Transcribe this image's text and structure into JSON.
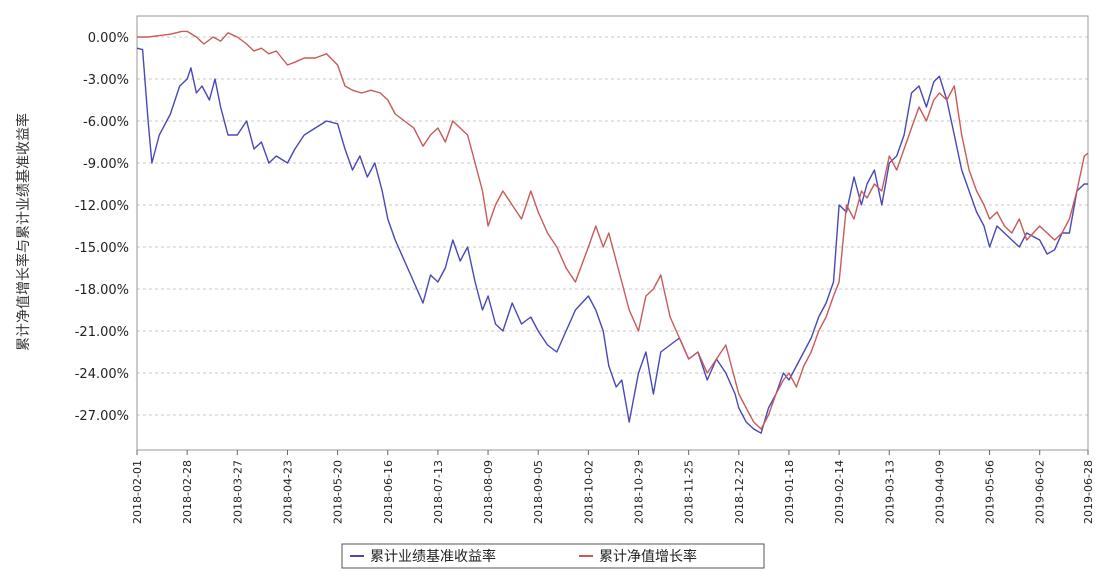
{
  "chart_data": {
    "type": "line",
    "title": "",
    "xlabel": "",
    "ylabel": "累计净值增长率与累计业绩基准收益率",
    "ylim": [
      -29.5,
      1.5
    ],
    "y_ticks": [
      "0.00%",
      "-3.00%",
      "-6.00%",
      "-9.00%",
      "-12.00%",
      "-15.00%",
      "-18.00%",
      "-21.00%",
      "-24.00%",
      "-27.00%"
    ],
    "y_tick_values": [
      0,
      -3,
      -6,
      -9,
      -12,
      -15,
      -18,
      -21,
      -24,
      -27
    ],
    "x_ticks": [
      "2018-02-01",
      "2018-02-28",
      "2018-03-27",
      "2018-04-23",
      "2018-05-20",
      "2018-06-16",
      "2018-07-13",
      "2018-08-09",
      "2018-09-05",
      "2018-10-02",
      "2018-10-29",
      "2018-11-25",
      "2018-12-22",
      "2019-01-18",
      "2019-02-14",
      "2019-03-13",
      "2019-04-09",
      "2019-05-06",
      "2019-06-02",
      "2019-06-28"
    ],
    "grid": true,
    "legend_position": "bottom",
    "series": [
      {
        "name": "累计业绩基准收益率",
        "color": "#4848b8",
        "x": [
          "2018-02-01",
          "2018-02-04",
          "2018-02-07",
          "2018-02-09",
          "2018-02-13",
          "2018-02-19",
          "2018-02-24",
          "2018-02-28",
          "2018-03-02",
          "2018-03-05",
          "2018-03-08",
          "2018-03-12",
          "2018-03-15",
          "2018-03-18",
          "2018-03-22",
          "2018-03-27",
          "2018-04-01",
          "2018-04-05",
          "2018-04-09",
          "2018-04-13",
          "2018-04-17",
          "2018-04-23",
          "2018-04-27",
          "2018-05-02",
          "2018-05-08",
          "2018-05-14",
          "2018-05-20",
          "2018-05-24",
          "2018-05-28",
          "2018-06-01",
          "2018-06-05",
          "2018-06-09",
          "2018-06-13",
          "2018-06-16",
          "2018-06-20",
          "2018-06-25",
          "2018-06-30",
          "2018-07-05",
          "2018-07-09",
          "2018-07-13",
          "2018-07-17",
          "2018-07-21",
          "2018-07-25",
          "2018-07-29",
          "2018-08-02",
          "2018-08-06",
          "2018-08-09",
          "2018-08-13",
          "2018-08-17",
          "2018-08-22",
          "2018-08-27",
          "2018-09-01",
          "2018-09-05",
          "2018-09-10",
          "2018-09-15",
          "2018-09-20",
          "2018-09-25",
          "2018-10-02",
          "2018-10-06",
          "2018-10-10",
          "2018-10-13",
          "2018-10-17",
          "2018-10-20",
          "2018-10-24",
          "2018-10-29",
          "2018-11-02",
          "2018-11-06",
          "2018-11-10",
          "2018-11-15",
          "2018-11-20",
          "2018-11-25",
          "2018-11-30",
          "2018-12-05",
          "2018-12-10",
          "2018-12-15",
          "2018-12-20",
          "2018-12-22",
          "2018-12-26",
          "2018-12-30",
          "2019-01-03",
          "2019-01-07",
          "2019-01-11",
          "2019-01-15",
          "2019-01-18",
          "2019-01-22",
          "2019-01-26",
          "2019-01-30",
          "2019-02-03",
          "2019-02-07",
          "2019-02-11",
          "2019-02-14",
          "2019-02-18",
          "2019-02-22",
          "2019-02-26",
          "2019-03-01",
          "2019-03-05",
          "2019-03-09",
          "2019-03-13",
          "2019-03-17",
          "2019-03-21",
          "2019-03-25",
          "2019-03-29",
          "2019-04-02",
          "2019-04-06",
          "2019-04-09",
          "2019-04-13",
          "2019-04-17",
          "2019-04-21",
          "2019-04-25",
          "2019-04-29",
          "2019-05-03",
          "2019-05-06",
          "2019-05-10",
          "2019-05-14",
          "2019-05-18",
          "2019-05-22",
          "2019-05-26",
          "2019-06-02",
          "2019-06-06",
          "2019-06-10",
          "2019-06-14",
          "2019-06-18",
          "2019-06-22",
          "2019-06-26",
          "2019-06-28"
        ],
        "y": [
          -0.8,
          -0.9,
          -6.0,
          -9.0,
          -7.0,
          -5.5,
          -3.5,
          -3.0,
          -2.2,
          -4.0,
          -3.5,
          -4.5,
          -3.0,
          -5.0,
          -7.0,
          -7.0,
          -6.0,
          -8.0,
          -7.5,
          -9.0,
          -8.5,
          -9.0,
          -8.0,
          -7.0,
          -6.5,
          -6.0,
          -6.2,
          -8.0,
          -9.5,
          -8.5,
          -10.0,
          -9.0,
          -11.0,
          -13.0,
          -14.5,
          -16.0,
          -17.5,
          -19.0,
          -17.0,
          -17.5,
          -16.5,
          -14.5,
          -16.0,
          -15.0,
          -17.5,
          -19.5,
          -18.5,
          -20.5,
          -21.0,
          -19.0,
          -20.5,
          -20.0,
          -21.0,
          -22.0,
          -22.5,
          -21.0,
          -19.5,
          -18.5,
          -19.5,
          -21.0,
          -23.5,
          -25.0,
          -24.5,
          -27.5,
          -24.0,
          -22.5,
          -25.5,
          -22.5,
          -22.0,
          -21.5,
          -23.0,
          -22.5,
          -24.5,
          -23.0,
          -24.0,
          -25.5,
          -26.5,
          -27.5,
          -28.0,
          -28.3,
          -26.5,
          -25.5,
          -24.0,
          -24.5,
          -23.5,
          -22.5,
          -21.5,
          -20.0,
          -19.0,
          -17.5,
          -12.0,
          -12.5,
          -10.0,
          -12.0,
          -10.5,
          -9.5,
          -12.0,
          -9.0,
          -8.5,
          -7.0,
          -4.0,
          -3.5,
          -5.0,
          -3.2,
          -2.8,
          -4.5,
          -7.0,
          -9.5,
          -11.0,
          -12.5,
          -13.5,
          -15.0,
          -13.5,
          -14.0,
          -14.5,
          -15.0,
          -14.0,
          -14.5,
          -15.5,
          -15.2,
          -14.0,
          -14.0,
          -11.0,
          -10.5,
          -10.5
        ]
      },
      {
        "name": "累计净值增长率",
        "color": "#c85a5a",
        "x": [
          "2018-02-01",
          "2018-02-07",
          "2018-02-13",
          "2018-02-19",
          "2018-02-25",
          "2018-02-28",
          "2018-03-05",
          "2018-03-09",
          "2018-03-14",
          "2018-03-18",
          "2018-03-22",
          "2018-03-27",
          "2018-04-01",
          "2018-04-05",
          "2018-04-09",
          "2018-04-13",
          "2018-04-17",
          "2018-04-23",
          "2018-04-27",
          "2018-05-02",
          "2018-05-08",
          "2018-05-14",
          "2018-05-20",
          "2018-05-24",
          "2018-05-28",
          "2018-06-02",
          "2018-06-07",
          "2018-06-12",
          "2018-06-16",
          "2018-06-20",
          "2018-06-25",
          "2018-06-30",
          "2018-07-05",
          "2018-07-09",
          "2018-07-13",
          "2018-07-17",
          "2018-07-21",
          "2018-07-25",
          "2018-07-29",
          "2018-08-02",
          "2018-08-06",
          "2018-08-09",
          "2018-08-13",
          "2018-08-17",
          "2018-08-22",
          "2018-08-27",
          "2018-09-01",
          "2018-09-05",
          "2018-09-10",
          "2018-09-15",
          "2018-09-20",
          "2018-09-25",
          "2018-10-02",
          "2018-10-06",
          "2018-10-10",
          "2018-10-13",
          "2018-10-17",
          "2018-10-20",
          "2018-10-24",
          "2018-10-29",
          "2018-11-02",
          "2018-11-06",
          "2018-11-10",
          "2018-11-15",
          "2018-11-20",
          "2018-11-25",
          "2018-11-30",
          "2018-12-05",
          "2018-12-10",
          "2018-12-15",
          "2018-12-20",
          "2018-12-22",
          "2018-12-26",
          "2018-12-30",
          "2019-01-03",
          "2019-01-07",
          "2019-01-11",
          "2019-01-15",
          "2019-01-18",
          "2019-01-22",
          "2019-01-26",
          "2019-01-30",
          "2019-02-03",
          "2019-02-07",
          "2019-02-11",
          "2019-02-14",
          "2019-02-18",
          "2019-02-22",
          "2019-02-26",
          "2019-03-01",
          "2019-03-05",
          "2019-03-09",
          "2019-03-13",
          "2019-03-17",
          "2019-03-21",
          "2019-03-25",
          "2019-03-29",
          "2019-04-02",
          "2019-04-06",
          "2019-04-09",
          "2019-04-13",
          "2019-04-17",
          "2019-04-21",
          "2019-04-25",
          "2019-04-29",
          "2019-05-03",
          "2019-05-06",
          "2019-05-10",
          "2019-05-14",
          "2019-05-18",
          "2019-05-22",
          "2019-05-26",
          "2019-06-02",
          "2019-06-06",
          "2019-06-10",
          "2019-06-14",
          "2019-06-18",
          "2019-06-22",
          "2019-06-26",
          "2019-06-28"
        ],
        "y": [
          0.0,
          0.0,
          0.1,
          0.2,
          0.4,
          0.4,
          0.0,
          -0.5,
          0.0,
          -0.3,
          0.3,
          0.0,
          -0.5,
          -1.0,
          -0.8,
          -1.2,
          -1.0,
          -2.0,
          -1.8,
          -1.5,
          -1.5,
          -1.2,
          -2.0,
          -3.5,
          -3.8,
          -4.0,
          -3.8,
          -4.0,
          -4.5,
          -5.5,
          -6.0,
          -6.5,
          -7.8,
          -7.0,
          -6.5,
          -7.5,
          -6.0,
          -6.5,
          -7.0,
          -9.0,
          -11.0,
          -13.5,
          -12.0,
          -11.0,
          -12.0,
          -13.0,
          -11.0,
          -12.5,
          -14.0,
          -15.0,
          -16.5,
          -17.5,
          -15.0,
          -13.5,
          -15.0,
          -14.0,
          -16.0,
          -17.5,
          -19.5,
          -21.0,
          -18.5,
          -18.0,
          -17.0,
          -20.0,
          -21.5,
          -23.0,
          -22.5,
          -24.0,
          -23.0,
          -22.0,
          -24.5,
          -25.5,
          -26.5,
          -27.5,
          -28.0,
          -27.0,
          -25.5,
          -24.5,
          -24.0,
          -25.0,
          -23.5,
          -22.5,
          -21.0,
          -20.0,
          -18.5,
          -17.5,
          -12.0,
          -13.0,
          -11.0,
          -11.5,
          -10.5,
          -11.0,
          -8.5,
          -9.5,
          -8.0,
          -6.5,
          -5.0,
          -6.0,
          -4.5,
          -4.0,
          -4.5,
          -3.5,
          -7.0,
          -9.5,
          -11.0,
          -12.0,
          -13.0,
          -12.5,
          -13.5,
          -14.0,
          -13.0,
          -14.5,
          -13.5,
          -14.0,
          -14.5,
          -14.0,
          -13.0,
          -11.0,
          -8.5,
          -8.3
        ]
      }
    ]
  }
}
